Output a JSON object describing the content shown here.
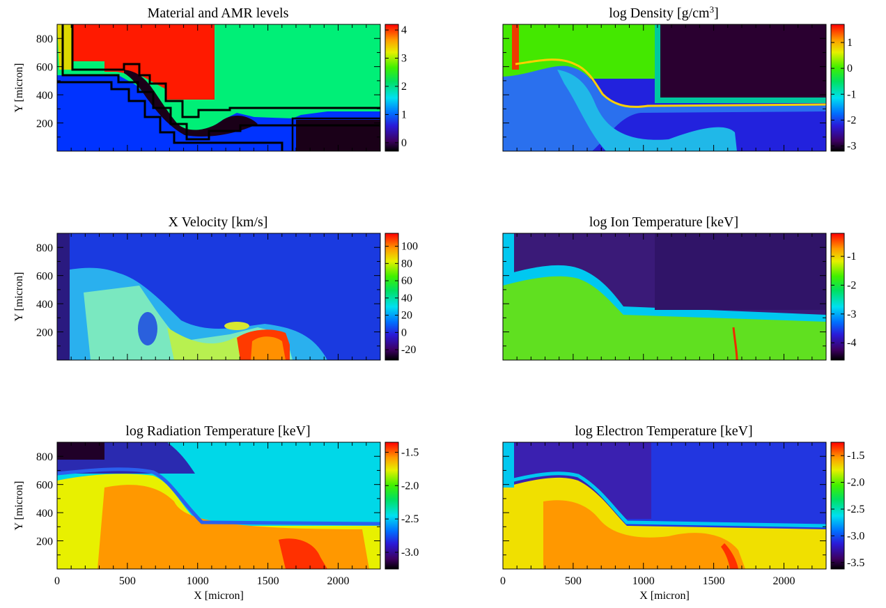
{
  "chart_data": [
    {
      "type": "heatmap",
      "title": "Material and AMR levels",
      "title_sup": "",
      "title_suffix": "",
      "xlabel": "",
      "ylabel": "Y [micron]",
      "xlim": [
        0,
        2300
      ],
      "ylim": [
        0,
        900
      ],
      "x_ticks": [],
      "y_ticks": [
        200,
        400,
        600,
        800
      ],
      "colorbar": {
        "min": -0.3,
        "max": 4.2,
        "ticks": [
          {
            "value": 4,
            "label": "4"
          },
          {
            "value": 3,
            "label": "3"
          },
          {
            "value": 2,
            "label": "2"
          },
          {
            "value": 1,
            "label": "1"
          },
          {
            "value": 0,
            "label": "0"
          }
        ]
      },
      "regions": [
        {
          "name": "background",
          "color": "#00ef77"
        },
        {
          "name": "dense-block",
          "color": "#ff1a00"
        },
        {
          "name": "substrate",
          "color": "#0033ff"
        },
        {
          "name": "void",
          "color": "#1a0018"
        }
      ]
    },
    {
      "type": "heatmap",
      "title": "log Density [g/cm",
      "title_sup": "3",
      "title_suffix": "]",
      "xlabel": "",
      "ylabel": "",
      "xlim": [
        0,
        2300
      ],
      "ylim": [
        0,
        900
      ],
      "x_ticks": [],
      "y_ticks": [],
      "colorbar": {
        "min": -3.2,
        "max": 1.7,
        "ticks": [
          {
            "value": 1,
            "label": "1"
          },
          {
            "value": 0,
            "label": "0"
          },
          {
            "value": -1,
            "label": "-1"
          },
          {
            "value": -2,
            "label": "-2"
          },
          {
            "value": -3,
            "label": "-3"
          }
        ]
      }
    },
    {
      "type": "heatmap",
      "title": "X Velocity [km/s]",
      "title_sup": "",
      "title_suffix": "",
      "xlabel": "",
      "ylabel": "Y [micron]",
      "xlim": [
        0,
        2300
      ],
      "ylim": [
        0,
        900
      ],
      "x_ticks": [],
      "y_ticks": [
        200,
        400,
        600,
        800
      ],
      "colorbar": {
        "min": -32,
        "max": 115,
        "ticks": [
          {
            "value": 100,
            "label": "100"
          },
          {
            "value": 80,
            "label": "80"
          },
          {
            "value": 60,
            "label": "60"
          },
          {
            "value": 40,
            "label": "40"
          },
          {
            "value": 20,
            "label": "20"
          },
          {
            "value": 0,
            "label": "0"
          },
          {
            "value": -20,
            "label": "-20"
          }
        ]
      }
    },
    {
      "type": "heatmap",
      "title": "log Ion Temperature [keV]",
      "title_sup": "",
      "title_suffix": "",
      "xlabel": "",
      "ylabel": "",
      "xlim": [
        0,
        2300
      ],
      "ylim": [
        0,
        900
      ],
      "x_ticks": [],
      "y_ticks": [],
      "colorbar": {
        "min": -4.6,
        "max": -0.2,
        "ticks": [
          {
            "value": -1,
            "label": "-1"
          },
          {
            "value": -2,
            "label": "-2"
          },
          {
            "value": -3,
            "label": "-3"
          },
          {
            "value": -4,
            "label": "-4"
          }
        ]
      }
    },
    {
      "type": "heatmap",
      "title": "log Radiation Temperature [keV]",
      "title_sup": "",
      "title_suffix": "",
      "xlabel": "X [micron]",
      "ylabel": "Y [micron]",
      "xlim": [
        0,
        2300
      ],
      "ylim": [
        0,
        900
      ],
      "x_ticks": [
        0,
        500,
        1000,
        1500,
        2000
      ],
      "y_ticks": [
        200,
        400,
        600,
        800
      ],
      "colorbar": {
        "min": -3.25,
        "max": -1.35,
        "ticks": [
          {
            "value": -1.5,
            "label": "-1.5"
          },
          {
            "value": -2.0,
            "label": "-2.0"
          },
          {
            "value": -2.5,
            "label": "-2.5"
          },
          {
            "value": -3.0,
            "label": "-3.0"
          }
        ]
      }
    },
    {
      "type": "heatmap",
      "title": "log Electron Temperature [keV]",
      "title_sup": "",
      "title_suffix": "",
      "xlabel": "X [micron]",
      "ylabel": "",
      "xlim": [
        0,
        2300
      ],
      "ylim": [
        0,
        900
      ],
      "x_ticks": [
        0,
        500,
        1000,
        1500,
        2000
      ],
      "y_ticks": [],
      "colorbar": {
        "min": -3.62,
        "max": -1.25,
        "ticks": [
          {
            "value": -1.5,
            "label": "-1.5"
          },
          {
            "value": -2.0,
            "label": "-2.0"
          },
          {
            "value": -2.5,
            "label": "-2.5"
          },
          {
            "value": -3.0,
            "label": "-3.0"
          },
          {
            "value": -3.5,
            "label": "-3.5"
          }
        ]
      }
    }
  ]
}
